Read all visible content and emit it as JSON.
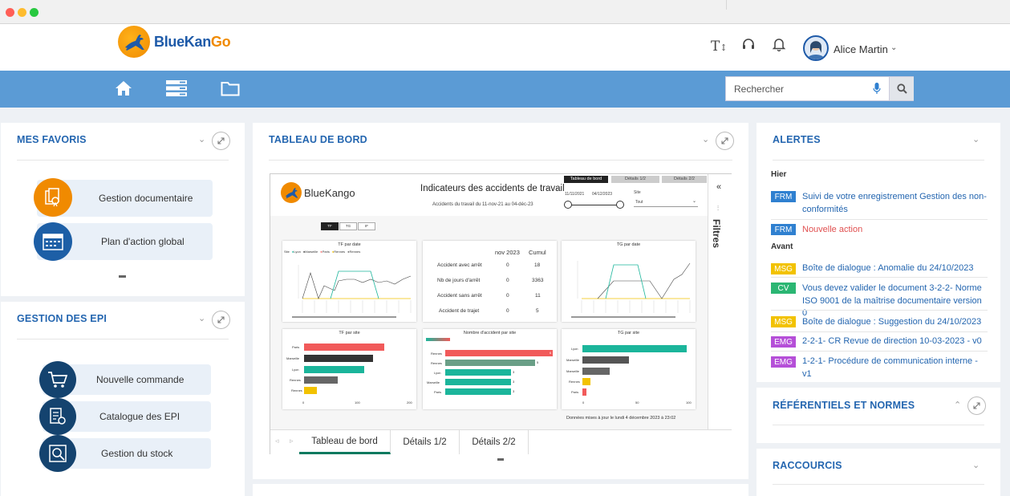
{
  "header": {
    "logo_blue": "BlueKan",
    "logo_orange": "Go",
    "user_name": "Alice Martin"
  },
  "search": {
    "placeholder": "Rechercher"
  },
  "favoris": {
    "title": "MES FAVORIS",
    "items": [
      {
        "label": "Gestion documentaire"
      },
      {
        "label": "Plan d'action global"
      }
    ]
  },
  "epi": {
    "title": "GESTION DES EPI",
    "items": [
      {
        "label": "Nouvelle commande"
      },
      {
        "label": "Catalogue des EPI"
      },
      {
        "label": "Gestion du stock"
      }
    ]
  },
  "tableau": {
    "title": "TABLEAU DE BORD",
    "dashboard": {
      "brand": "BlueKango",
      "title": "Indicateurs des accidents de travail",
      "subtitle": "Accidents du travail du 11-nov-21 au 04-déc-23",
      "nav_buttons": [
        "Tableau de bord",
        "Détails 1/2",
        "Détails 2/2"
      ],
      "date_from": "11/11/2021",
      "date_to": "04/12/2023",
      "site_label": "Site",
      "site_value": "Tout",
      "toggle": [
        "TF",
        "TG",
        "IF"
      ],
      "legend": {
        "label": "Site",
        "items": [
          {
            "name": "Lyon",
            "color": "#1bb59b"
          },
          {
            "name": "Marseille",
            "color": "#333333"
          },
          {
            "name": "Paris",
            "color": "#f15a5a"
          },
          {
            "name": "Rennes",
            "color": "#f2c200"
          },
          {
            "name": "Rennes",
            "color": "#666666"
          }
        ]
      },
      "card_tf_date": "TF par date",
      "card_tg_date": "TG par date",
      "card_tf_site": "TF par site",
      "card_nb_site": "Nombre d'accident par site",
      "card_tg_site": "TG par site",
      "kpi": {
        "col1": "nov 2023",
        "col2": "Cumul",
        "rows": [
          {
            "label": "Accident avec arrêt",
            "v1": "0",
            "v2": "18"
          },
          {
            "label": "Nb de jours d'arrêt",
            "v1": "0",
            "v2": "3363"
          },
          {
            "label": "Accident sans arrêt",
            "v1": "0",
            "v2": "11"
          },
          {
            "label": "Accident de trajet",
            "v1": "0",
            "v2": "5"
          }
        ]
      },
      "update_note": "Données mises à jour le lundi 4 décembre 2023 à 23:02",
      "filters_label": "Filtres",
      "sites_tf": [
        "Paris",
        "Marseille",
        "Lyon",
        "Rennes",
        "Rennes"
      ],
      "sites_nb": [
        "Rennes",
        "Rennes",
        "Lyon",
        "Marseille",
        "Paris"
      ],
      "sites_tg": [
        "Lyon",
        "Marseille",
        "Marseille",
        "Rennes",
        "Paris"
      ],
      "nb_values": [
        "6",
        "5",
        "3",
        "3",
        "3"
      ],
      "tf_ticks": [
        "0",
        "100",
        "200"
      ],
      "tg_ticks": [
        "0",
        "50",
        "100"
      ]
    },
    "tabs": [
      {
        "label": "Tableau de bord"
      },
      {
        "label": "Détails 1/2"
      },
      {
        "label": "Détails 2/2"
      }
    ]
  },
  "alertes": {
    "title": "ALERTES",
    "group_hier": "Hier",
    "group_avant": "Avant",
    "items": [
      {
        "badge": "FRM",
        "color": "#2f80d0",
        "text": "Suivi de votre enregistrement Gestion des non-conformités",
        "text_color": "#2466b0"
      },
      {
        "badge": "FRM",
        "color": "#2f80d0",
        "text": "Nouvelle action",
        "text_color": "#e05050"
      },
      {
        "badge": "MSG",
        "color": "#f2c200",
        "text": "Boîte de dialogue : Anomalie du 24/10/2023",
        "text_color": "#2466b0"
      },
      {
        "badge": "CV",
        "color": "#2bb673",
        "text": "Vous devez valider le document 3-2-2- Norme ISO 9001 de la maîtrise documentaire version 0",
        "text_color": "#2466b0"
      },
      {
        "badge": "MSG",
        "color": "#f2c200",
        "text": "Boîte de dialogue : Suggestion du 24/10/2023",
        "text_color": "#2466b0"
      },
      {
        "badge": "EMG",
        "color": "#b54fd8",
        "text": "2-2-1- CR Revue de direction 10-03-2023 - v0",
        "text_color": "#2466b0"
      },
      {
        "badge": "EMG",
        "color": "#b54fd8",
        "text": "1-2-1- Procédure de communication interne - v1",
        "text_color": "#2466b0"
      }
    ]
  },
  "referentiels": {
    "title": "RÉFÉRENTIELS ET NORMES"
  },
  "raccourcis": {
    "title": "RACCOURCIS"
  },
  "colors": {
    "accent": "#2466b0",
    "navbar": "#5b9bd5",
    "orange": "#f08a00",
    "dark_blue": "#1d5fa6",
    "teal": "#1bb59b",
    "red": "#f15a5a"
  },
  "icons": [
    "home-icon",
    "list-icon",
    "folder-icon",
    "text-size-icon",
    "headset-icon",
    "bell-icon",
    "mic-icon",
    "search-icon"
  ]
}
